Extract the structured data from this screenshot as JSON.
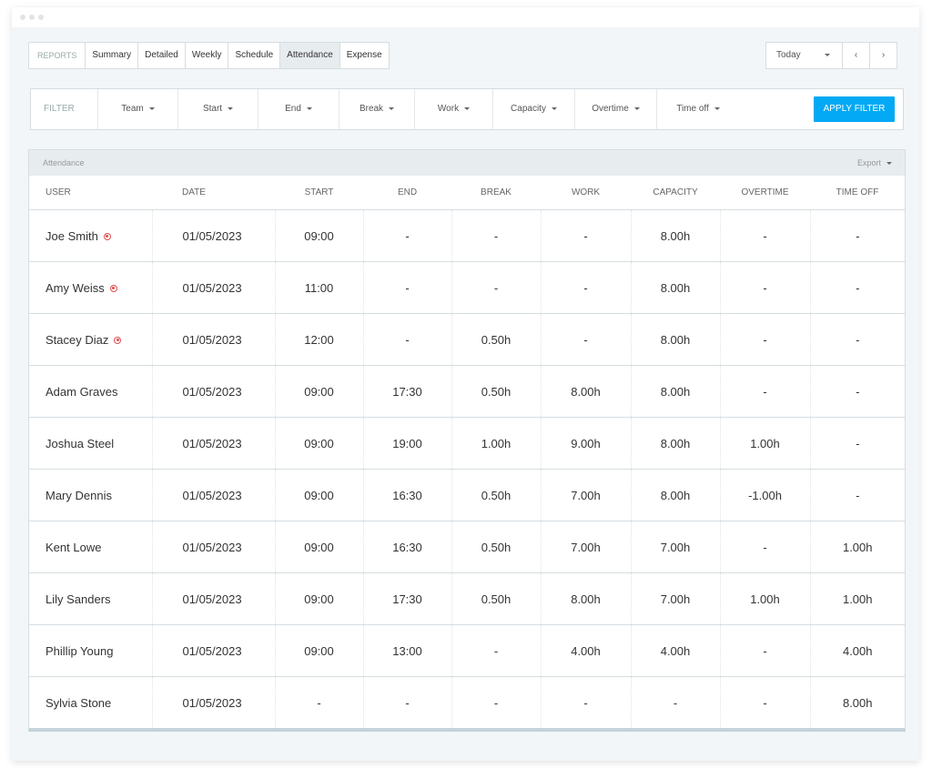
{
  "tabs": {
    "label": "REPORTS",
    "items": [
      "Summary",
      "Detailed",
      "Weekly",
      "Schedule",
      "Attendance",
      "Expense"
    ],
    "active": 4
  },
  "date_picker": {
    "label": "Today"
  },
  "filter": {
    "label": "FILTER",
    "items": [
      "Team",
      "Start",
      "End",
      "Break",
      "Work",
      "Capacity",
      "Overtime",
      "Time off"
    ],
    "button": "APPLY FILTER"
  },
  "table": {
    "title": "Attendance",
    "export": "Export",
    "columns": [
      "USER",
      "DATE",
      "START",
      "END",
      "BREAK",
      "WORK",
      "CAPACITY",
      "OVERTIME",
      "TIME OFF"
    ],
    "rows": [
      [
        "Joe Smith",
        "01/05/2023",
        "09:00",
        "-",
        "-",
        "-",
        "8.00h",
        "-",
        "-"
      ],
      [
        "Amy Weiss",
        "01/05/2023",
        "11:00",
        "-",
        "-",
        "-",
        "8.00h",
        "-",
        "-"
      ],
      [
        "Stacey Diaz",
        "01/05/2023",
        "12:00",
        "-",
        "0.50h",
        "-",
        "8.00h",
        "-",
        "-"
      ],
      [
        "Adam Graves",
        "01/05/2023",
        "09:00",
        "17:30",
        "0.50h",
        "8.00h",
        "8.00h",
        "-",
        "-"
      ],
      [
        "Joshua Steel",
        "01/05/2023",
        "09:00",
        "19:00",
        "1.00h",
        "9.00h",
        "8.00h",
        "1.00h",
        "-"
      ],
      [
        "Mary Dennis",
        "01/05/2023",
        "09:00",
        "16:30",
        "0.50h",
        "7.00h",
        "8.00h",
        "-1.00h",
        "-"
      ],
      [
        "Kent Lowe",
        "01/05/2023",
        "09:00",
        "16:30",
        "0.50h",
        "7.00h",
        "7.00h",
        "-",
        "1.00h"
      ],
      [
        "Lily Sanders",
        "01/05/2023",
        "09:00",
        "17:30",
        "0.50h",
        "8.00h",
        "7.00h",
        "1.00h",
        "1.00h"
      ],
      [
        "Phillip Young",
        "01/05/2023",
        "09:00",
        "13:00",
        "-",
        "4.00h",
        "4.00h",
        "-",
        "4.00h"
      ],
      [
        "Sylvia Stone",
        "01/05/2023",
        "-",
        "-",
        "-",
        "-",
        "-",
        "-",
        "8.00h"
      ]
    ],
    "timer_running": [
      true,
      true,
      true,
      false,
      false,
      false,
      false,
      false,
      false,
      false
    ]
  }
}
